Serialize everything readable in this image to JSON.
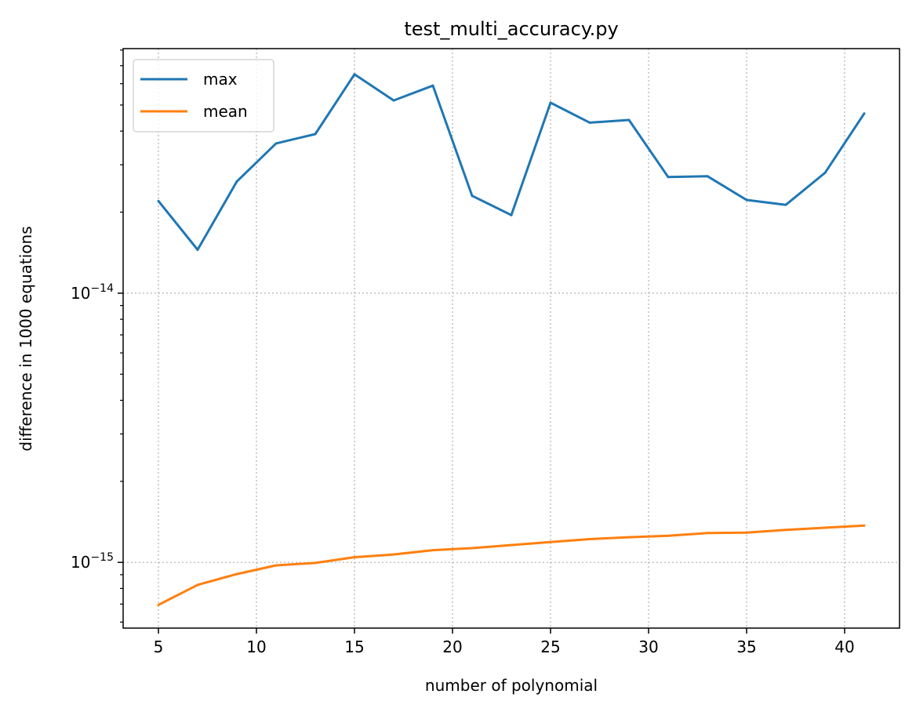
{
  "chart_data": {
    "type": "line",
    "title": "test_multi_accuracy.py",
    "xlabel": "number of polynomial",
    "ylabel": "difference in 1000 equations",
    "yscale": "log",
    "x": [
      5,
      7,
      9,
      11,
      13,
      15,
      17,
      19,
      21,
      23,
      25,
      27,
      29,
      31,
      33,
      35,
      37,
      39,
      41
    ],
    "xlim": [
      3.2,
      42.8
    ],
    "ylim": [
      5.7e-16,
      8.1e-14
    ],
    "xticks": [
      5,
      10,
      15,
      20,
      25,
      30,
      35,
      40
    ],
    "xtick_labels": [
      "5",
      "10",
      "15",
      "20",
      "25",
      "30",
      "35",
      "40"
    ],
    "yticks": [
      1e-15,
      1e-14
    ],
    "ytick_labels": [
      {
        "base": "10",
        "exp": "−15"
      },
      {
        "base": "10",
        "exp": "−14"
      }
    ],
    "grid": true,
    "legend_position": "upper left",
    "series": [
      {
        "name": "max",
        "color": "#1f77b4",
        "values": [
          2.2e-14,
          1.45e-14,
          2.6e-14,
          3.6e-14,
          3.9e-14,
          6.5e-14,
          5.2e-14,
          5.9e-14,
          2.3e-14,
          1.95e-14,
          5.1e-14,
          4.3e-14,
          4.4e-14,
          2.7e-14,
          2.72e-14,
          2.22e-14,
          2.13e-14,
          2.8e-14,
          4.65e-14
        ]
      },
      {
        "name": "mean",
        "color": "#ff7f0e",
        "values": [
          6.95e-16,
          8.25e-16,
          9.05e-16,
          9.75e-16,
          9.95e-16,
          1.045e-15,
          1.07e-15,
          1.11e-15,
          1.13e-15,
          1.16e-15,
          1.19e-15,
          1.22e-15,
          1.24e-15,
          1.255e-15,
          1.285e-15,
          1.29e-15,
          1.32e-15,
          1.345e-15,
          1.37e-15
        ]
      }
    ]
  }
}
